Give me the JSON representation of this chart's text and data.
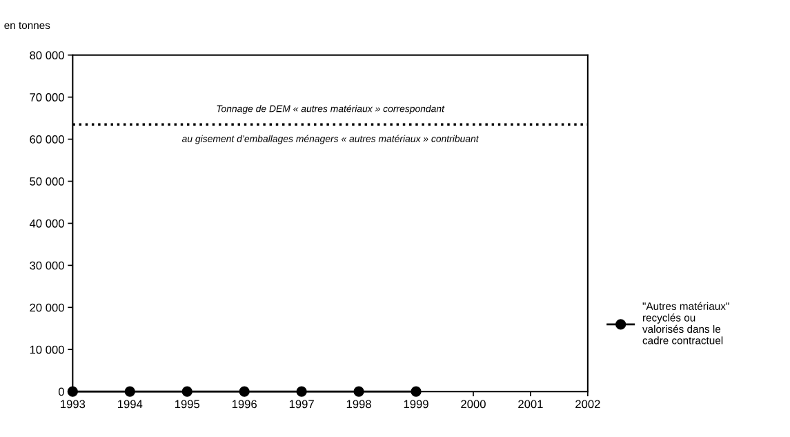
{
  "chart_data": {
    "type": "line",
    "ylabel": "en tonnes",
    "x": [
      1993,
      1994,
      1995,
      1996,
      1997,
      1998,
      1999
    ],
    "series": [
      {
        "name": "\"Autres matériaux\" recyclés ou valorisés dans le cadre contractuel",
        "color": "#000000",
        "values": [
          0,
          0,
          0,
          0,
          0,
          0,
          0
        ]
      }
    ],
    "marker": "circle",
    "line_style": "solid",
    "xlim": [
      1993,
      2002
    ],
    "xticks": [
      1993,
      1994,
      1995,
      1996,
      1997,
      1998,
      1999,
      2000,
      2001,
      2002
    ],
    "ylim": [
      0,
      80000
    ],
    "yticks": [
      0,
      {
        "value": 10000,
        "label": "10 000"
      },
      {
        "value": 20000,
        "label": "20 000"
      },
      {
        "value": 30000,
        "label": "30 000"
      },
      {
        "value": 40000,
        "label": "40 000"
      },
      {
        "value": 50000,
        "label": "50 000"
      },
      {
        "value": 60000,
        "label": "60 000"
      },
      {
        "value": 70000,
        "label": "70 000"
      },
      {
        "value": 80000,
        "label": "80 000"
      }
    ],
    "ref_lines": [
      {
        "axis": "y",
        "value": 63500,
        "label": "Tonnage de DEM « autres matériaux » correspondant",
        "color": "#000000",
        "line_style": "dotted"
      }
    ],
    "annotations": [
      {
        "text": "au gisement d’emballages ménagers « autres matériaux » contribuant",
        "x": 1997.5,
        "y": 63500
      }
    ],
    "grid": false,
    "legend": "right"
  }
}
